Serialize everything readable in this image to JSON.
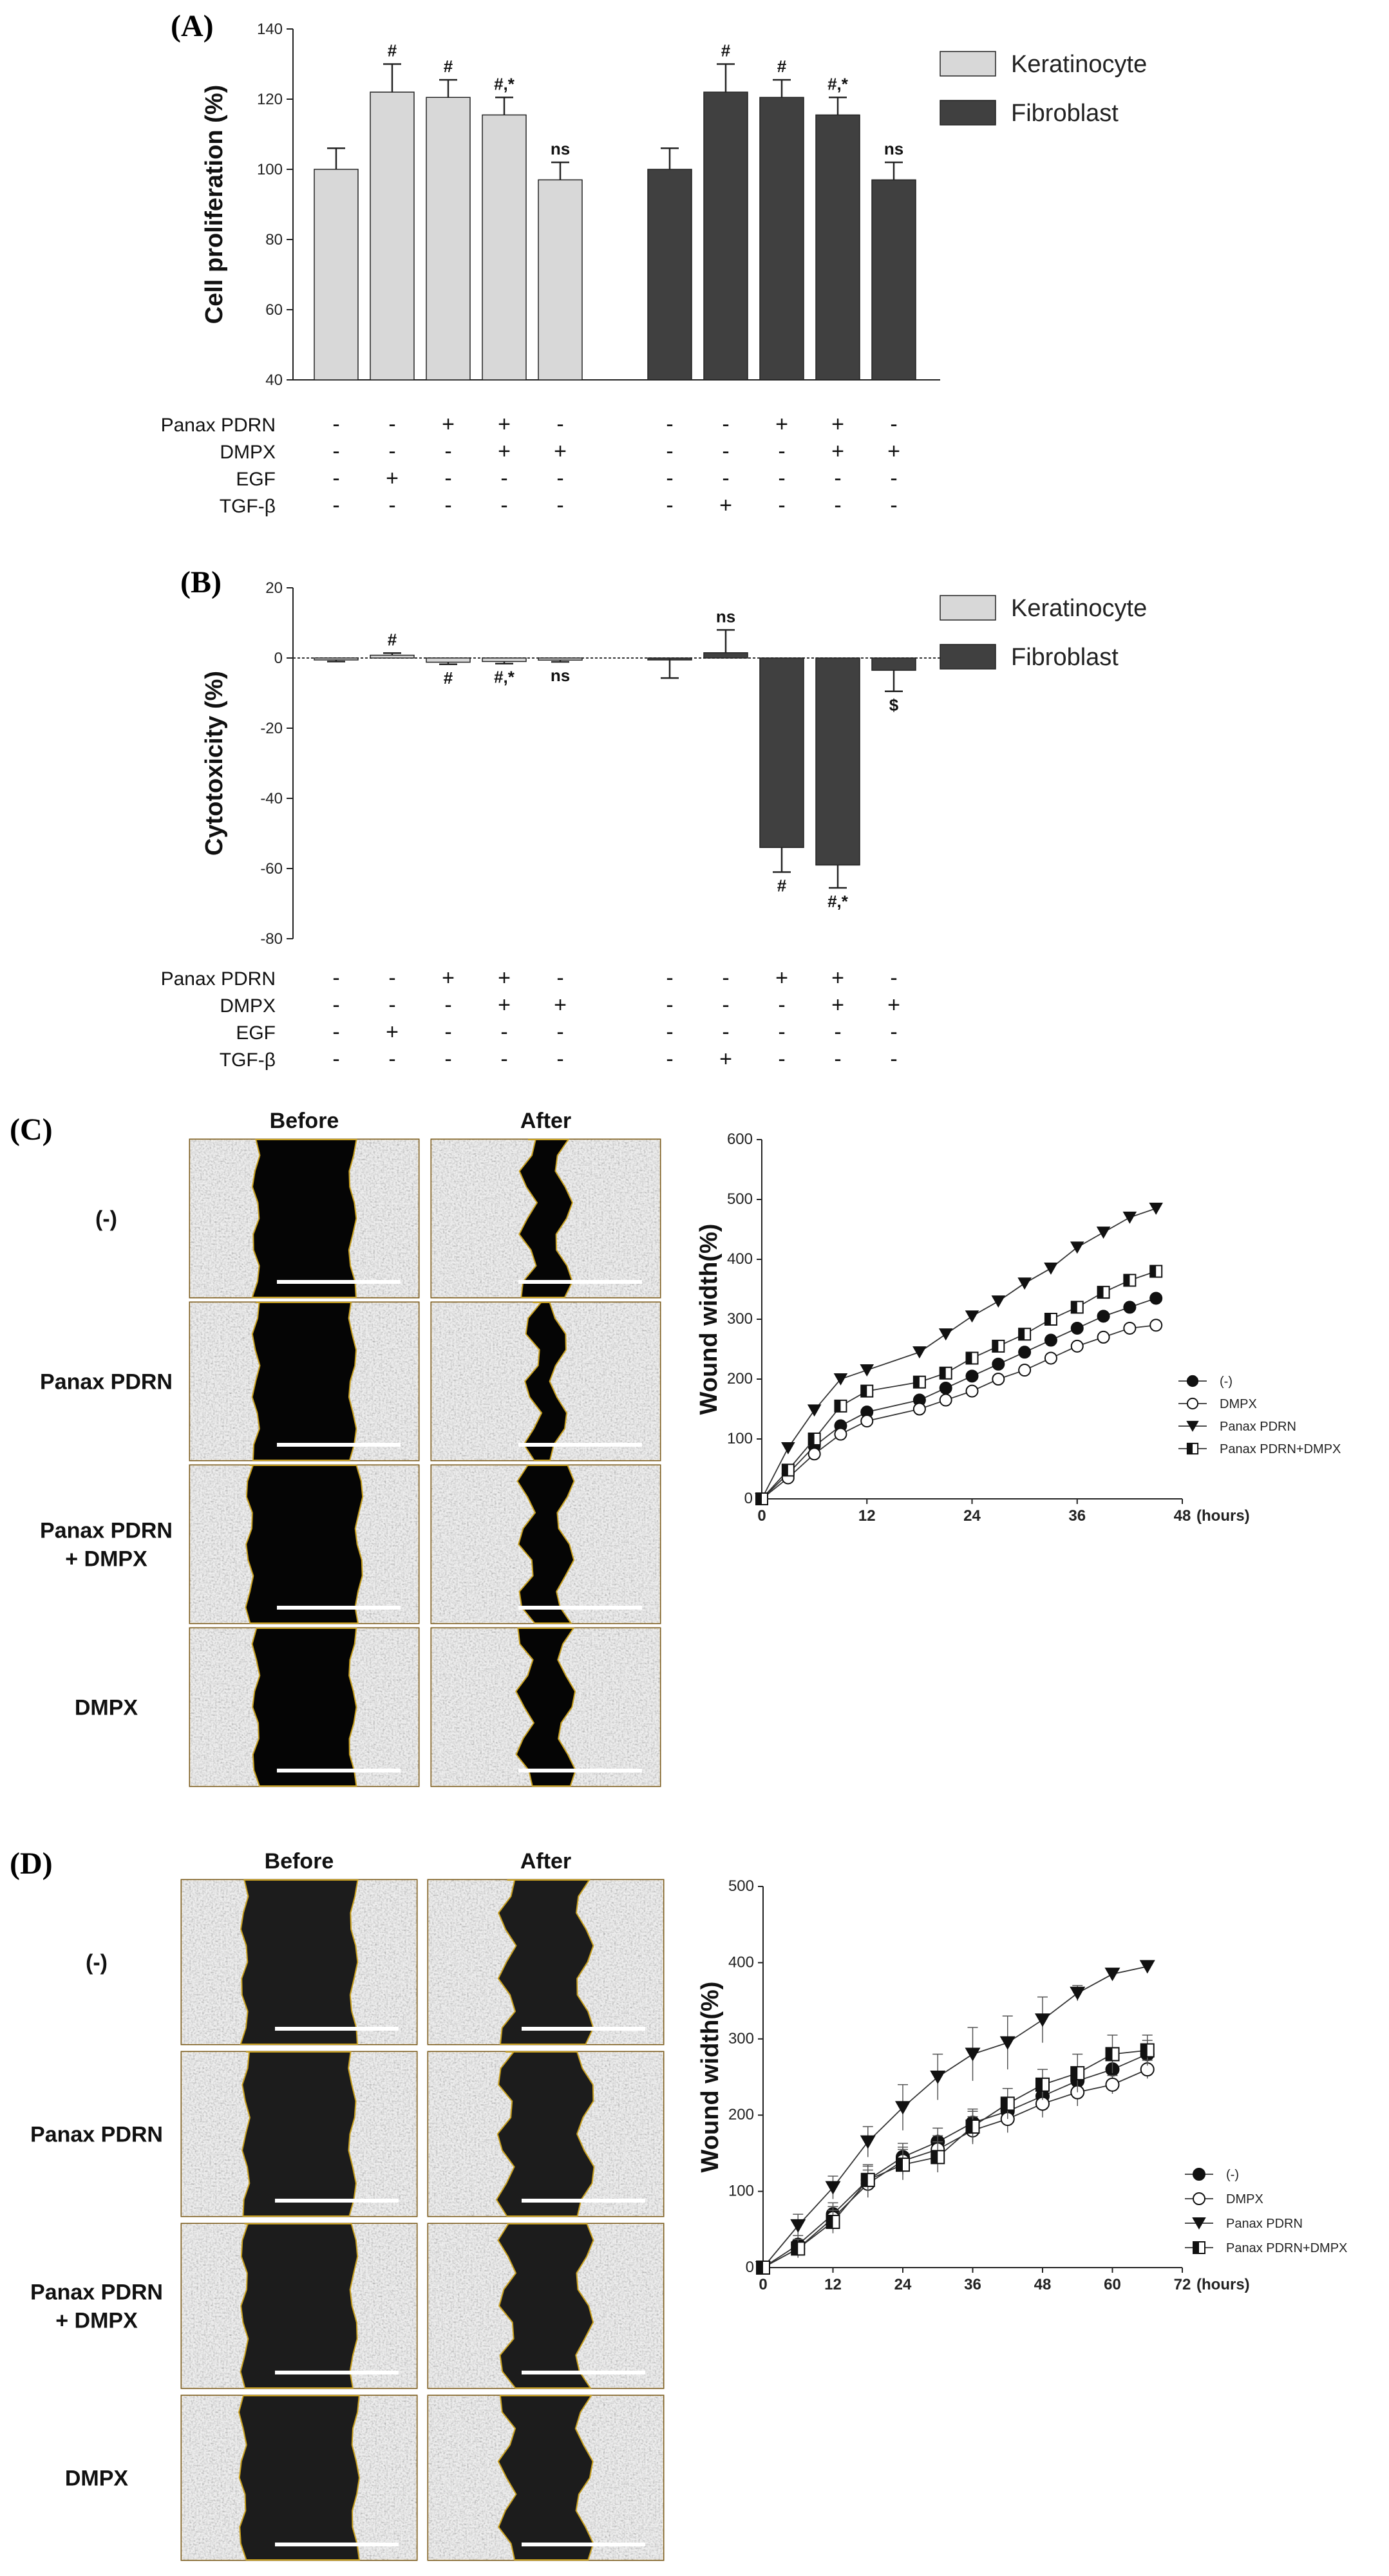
{
  "figure": {
    "panels": [
      {
        "letter": "(A)",
        "chart_data": {
          "type": "bar",
          "ylabel": "Cell proliferation  (%)",
          "ylim": [
            40,
            140
          ],
          "yticks": [
            40,
            60,
            80,
            100,
            120,
            140
          ],
          "legend": {
            "placement": "top-right",
            "entries": [
              "Keratinocyte",
              "Fibroblast"
            ]
          },
          "colors": {
            "Keratinocyte": "#d8d8d8",
            "Fibroblast": "#404040"
          },
          "series": [
            {
              "name": "Keratinocyte",
              "values": [
                100,
                122,
                120.5,
                115.5,
                97
              ],
              "errors": [
                6,
                8,
                5,
                5,
                5
              ],
              "labels": [
                "",
                "#",
                "#",
                "#,*",
                "ns"
              ]
            },
            {
              "name": "Fibroblast",
              "values": [
                100,
                122,
                120.5,
                115.5,
                97
              ],
              "errors": [
                6,
                8,
                5,
                5,
                5
              ],
              "labels": [
                "",
                "#",
                "#",
                "#,*",
                "ns"
              ]
            }
          ],
          "treatment_rows": [
            {
              "label": "Panax PDRN",
              "values": [
                "-",
                "-",
                "+",
                "+",
                "-",
                "-",
                "-",
                "+",
                "+",
                "-"
              ]
            },
            {
              "label": "DMPX",
              "values": [
                "-",
                "-",
                "-",
                "+",
                "+",
                "-",
                "-",
                "-",
                "+",
                "+"
              ]
            },
            {
              "label": "EGF",
              "values": [
                "-",
                "+",
                "-",
                "-",
                "-",
                "-",
                "-",
                "-",
                "-",
                "-"
              ]
            },
            {
              "label": "TGF-β",
              "values": [
                "-",
                "-",
                "-",
                "-",
                "-",
                "-",
                "+",
                "-",
                "-",
                "-"
              ]
            }
          ]
        }
      },
      {
        "letter": "(B)",
        "chart_data": {
          "type": "bar",
          "ylabel": "Cytotoxicity (%)",
          "ylim": [
            -80,
            20
          ],
          "yticks": [
            -80,
            -60,
            -40,
            -20,
            0,
            20
          ],
          "legend": {
            "placement": "top-right",
            "entries": [
              "Keratinocyte",
              "Fibroblast"
            ]
          },
          "colors": {
            "Keratinocyte": "#d8d8d8",
            "Fibroblast": "#404040"
          },
          "series": [
            {
              "name": "Keratinocyte",
              "values": [
                -0.5,
                0.8,
                -1.2,
                -1.0,
                -0.6
              ],
              "errors": [
                0.5,
                0.6,
                0.6,
                0.6,
                0.5
              ],
              "labels": [
                "",
                "#",
                "#",
                "#,*",
                "ns"
              ]
            },
            {
              "name": "Fibroblast",
              "values": [
                -0.2,
                1.5,
                -54,
                -59,
                -3.5
              ],
              "errors": [
                5.5,
                6.5,
                7,
                6.5,
                6
              ],
              "labels": [
                "",
                "ns",
                "#",
                "#,*",
                "$"
              ]
            }
          ],
          "treatment_rows": [
            {
              "label": "Panax PDRN",
              "values": [
                "-",
                "-",
                "+",
                "+",
                "-",
                "-",
                "-",
                "+",
                "+",
                "-"
              ]
            },
            {
              "label": "DMPX",
              "values": [
                "-",
                "-",
                "-",
                "+",
                "+",
                "-",
                "-",
                "-",
                "+",
                "+"
              ]
            },
            {
              "label": "EGF",
              "values": [
                "-",
                "+",
                "-",
                "-",
                "-",
                "-",
                "-",
                "-",
                "-",
                "-"
              ]
            },
            {
              "label": "TGF-β",
              "values": [
                "-",
                "-",
                "-",
                "-",
                "-",
                "-",
                "+",
                "-",
                "-",
                "-"
              ]
            }
          ]
        }
      },
      {
        "letter": "(C)",
        "image_grid": {
          "columns": [
            "Before",
            "After"
          ],
          "rows": [
            "(-)",
            "Panax  PDRN",
            "Panax  PDRN\n+ DMPX",
            "DMPX"
          ]
        },
        "chart_data": {
          "type": "line",
          "ylabel": "Wound width(%)",
          "xlabel": "(hours)",
          "xlim": [
            0,
            48
          ],
          "xticks": [
            0,
            12,
            24,
            36,
            48
          ],
          "ylim": [
            0,
            600
          ],
          "yticks": [
            0,
            100,
            200,
            300,
            400,
            500,
            600
          ],
          "legend": {
            "placement": "right",
            "entries": [
              "(-)",
              "DMPX",
              "Panax PDRN",
              "Panax PDRN+DMPX"
            ]
          },
          "x": [
            0,
            3,
            6,
            9,
            12,
            18,
            21,
            24,
            27,
            30,
            33,
            36,
            39,
            42,
            45
          ],
          "series": [
            {
              "name": "(-)",
              "marker": "filled-circle",
              "values": [
                0,
                42,
                88,
                122,
                145,
                165,
                185,
                205,
                225,
                245,
                265,
                285,
                305,
                320,
                335
              ]
            },
            {
              "name": "DMPX",
              "marker": "open-circle",
              "values": [
                0,
                35,
                75,
                108,
                130,
                150,
                165,
                180,
                200,
                215,
                235,
                255,
                270,
                285,
                290
              ]
            },
            {
              "name": "Panax PDRN",
              "marker": "filled-triangle-down",
              "values": [
                0,
                85,
                148,
                200,
                215,
                245,
                275,
                305,
                330,
                360,
                385,
                420,
                445,
                470,
                485
              ]
            },
            {
              "name": "Panax PDRN+DMPX",
              "marker": "half-square",
              "values": [
                0,
                48,
                100,
                155,
                180,
                195,
                210,
                235,
                255,
                275,
                300,
                320,
                345,
                365,
                380
              ]
            }
          ]
        }
      },
      {
        "letter": "(D)",
        "image_grid": {
          "columns": [
            "Before",
            "After"
          ],
          "rows": [
            "(-)",
            "Panax  PDRN",
            "Panax  PDRN\n+ DMPX",
            "DMPX"
          ]
        },
        "chart_data": {
          "type": "line",
          "ylabel": "Wound width(%)",
          "xlabel": "(hours)",
          "xlim": [
            0,
            72
          ],
          "xticks": [
            0,
            12,
            24,
            36,
            48,
            60,
            72
          ],
          "ylim": [
            0,
            500
          ],
          "yticks": [
            0,
            100,
            200,
            300,
            400,
            500
          ],
          "legend": {
            "placement": "right",
            "entries": [
              "(-)",
              "DMPX",
              "Panax PDRN",
              "Panax PDRN+DMPX"
            ]
          },
          "x": [
            0,
            6,
            12,
            18,
            24,
            30,
            36,
            42,
            48,
            54,
            60,
            66
          ],
          "series": [
            {
              "name": "(-)",
              "marker": "filled-circle",
              "values": [
                0,
                30,
                70,
                115,
                145,
                165,
                190,
                205,
                225,
                245,
                260,
                280
              ],
              "errors": [
                5,
                12,
                15,
                18,
                18,
                18,
                18,
                18,
                18,
                18,
                18,
                18
              ]
            },
            {
              "name": "DMPX",
              "marker": "open-circle",
              "values": [
                0,
                25,
                65,
                110,
                140,
                155,
                180,
                195,
                215,
                230,
                240,
                260
              ],
              "errors": [
                5,
                12,
                15,
                18,
                18,
                18,
                18,
                18,
                18,
                18,
                12,
                12
              ]
            },
            {
              "name": "Panax PDRN",
              "marker": "filled-triangle-down",
              "values": [
                0,
                55,
                105,
                165,
                210,
                250,
                280,
                295,
                325,
                360,
                385,
                395
              ],
              "errors": [
                5,
                15,
                15,
                20,
                30,
                30,
                35,
                35,
                30,
                10,
                5,
                5
              ]
            },
            {
              "name": "Panax PDRN+DMPX",
              "marker": "half-square",
              "values": [
                0,
                25,
                60,
                115,
                135,
                145,
                185,
                215,
                240,
                255,
                280,
                285
              ],
              "errors": [
                5,
                12,
                15,
                20,
                20,
                20,
                20,
                20,
                20,
                25,
                25,
                20
              ]
            }
          ]
        }
      }
    ]
  }
}
